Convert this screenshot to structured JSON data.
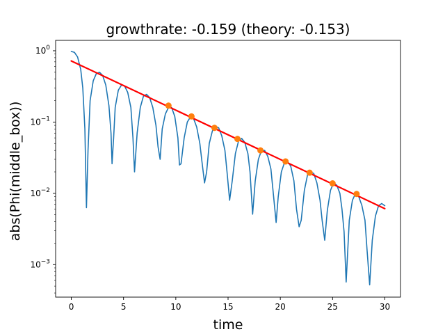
{
  "chart_data": {
    "type": "line",
    "title": "growthrate: -0.159 (theory: -0.153)",
    "xlabel": "time",
    "ylabel": "abs(Phi(middle_box))",
    "xlim": [
      -1.5,
      31.5
    ],
    "ylim": [
      0.00035,
      1.4
    ],
    "yscale": "log",
    "grid": false,
    "x_ticks": [
      0,
      5,
      10,
      15,
      20,
      25,
      30
    ],
    "x_tick_labels": [
      "0",
      "5",
      "10",
      "15",
      "20",
      "25",
      "30"
    ],
    "y_ticks": [
      0.001,
      0.01,
      0.1,
      1
    ],
    "y_tick_labels": [
      {
        "base": "10",
        "exp": "−3"
      },
      {
        "base": "10",
        "exp": "−2"
      },
      {
        "base": "10",
        "exp": "−1"
      },
      {
        "base": "10",
        "exp": "0"
      }
    ],
    "series": [
      {
        "role": "signal",
        "color": "#1f77b4",
        "x": [
          0.0,
          0.3,
          0.6,
          0.9,
          1.1,
          1.3,
          1.45,
          1.6,
          1.8,
          2.1,
          2.4,
          2.7,
          3.0,
          3.3,
          3.6,
          3.8,
          3.9,
          4.05,
          4.2,
          4.5,
          4.8,
          5.1,
          5.4,
          5.7,
          5.9,
          6.05,
          6.3,
          6.6,
          6.9,
          7.2,
          7.5,
          7.8,
          8.1,
          8.3,
          8.5,
          8.7,
          9.0,
          9.3,
          9.6,
          9.9,
          10.2,
          10.35,
          10.5,
          10.8,
          11.1,
          11.4,
          11.7,
          12.0,
          12.3,
          12.5,
          12.75,
          12.95,
          13.2,
          13.5,
          13.8,
          14.1,
          14.4,
          14.7,
          14.9,
          15.15,
          15.4,
          15.7,
          16.0,
          16.3,
          16.6,
          16.9,
          17.1,
          17.35,
          17.6,
          17.9,
          18.2,
          18.5,
          18.8,
          19.1,
          19.3,
          19.6,
          19.8,
          20.1,
          20.4,
          20.7,
          21.0,
          21.3,
          21.55,
          21.8,
          22.0,
          22.3,
          22.6,
          22.9,
          23.2,
          23.5,
          23.8,
          24.0,
          24.25,
          24.5,
          24.8,
          25.1,
          25.4,
          25.7,
          25.9,
          26.1,
          26.3,
          26.6,
          26.9,
          27.2,
          27.5,
          27.8,
          28.1,
          28.3,
          28.55,
          28.8,
          29.1,
          29.4,
          29.7,
          30.0
        ],
        "y": [
          0.98,
          0.95,
          0.82,
          0.55,
          0.3,
          0.08,
          0.0063,
          0.04,
          0.2,
          0.38,
          0.48,
          0.5,
          0.45,
          0.33,
          0.17,
          0.07,
          0.026,
          0.06,
          0.16,
          0.28,
          0.33,
          0.32,
          0.26,
          0.16,
          0.06,
          0.02,
          0.07,
          0.16,
          0.23,
          0.245,
          0.22,
          0.16,
          0.09,
          0.045,
          0.03,
          0.08,
          0.13,
          0.16,
          0.16,
          0.12,
          0.06,
          0.025,
          0.026,
          0.06,
          0.1,
          0.118,
          0.112,
          0.085,
          0.05,
          0.028,
          0.014,
          0.02,
          0.05,
          0.075,
          0.087,
          0.083,
          0.064,
          0.04,
          0.02,
          0.008,
          0.015,
          0.036,
          0.054,
          0.059,
          0.052,
          0.036,
          0.02,
          0.0051,
          0.015,
          0.03,
          0.04,
          0.04,
          0.033,
          0.022,
          0.011,
          0.0039,
          0.009,
          0.02,
          0.027,
          0.028,
          0.024,
          0.015,
          0.006,
          0.0034,
          0.0042,
          0.011,
          0.018,
          0.02,
          0.019,
          0.014,
          0.008,
          0.0042,
          0.0022,
          0.0058,
          0.011,
          0.014,
          0.013,
          0.01,
          0.006,
          0.0029,
          0.00057,
          0.0042,
          0.008,
          0.01,
          0.009,
          0.0068,
          0.0042,
          0.0016,
          0.00052,
          0.0022,
          0.0048,
          0.0067,
          0.0072,
          0.0067
        ]
      },
      {
        "role": "fit",
        "color": "#ff0000",
        "x": [
          0,
          30
        ],
        "y": [
          0.72,
          0.0061
        ]
      },
      {
        "role": "peaks",
        "color": "#ff7f0e",
        "x": [
          9.3,
          11.5,
          13.7,
          15.9,
          18.1,
          20.5,
          22.8,
          25.0,
          27.3
        ],
        "y": [
          0.17,
          0.12,
          0.083,
          0.058,
          0.04,
          0.028,
          0.0195,
          0.0138,
          0.0098
        ]
      }
    ]
  }
}
